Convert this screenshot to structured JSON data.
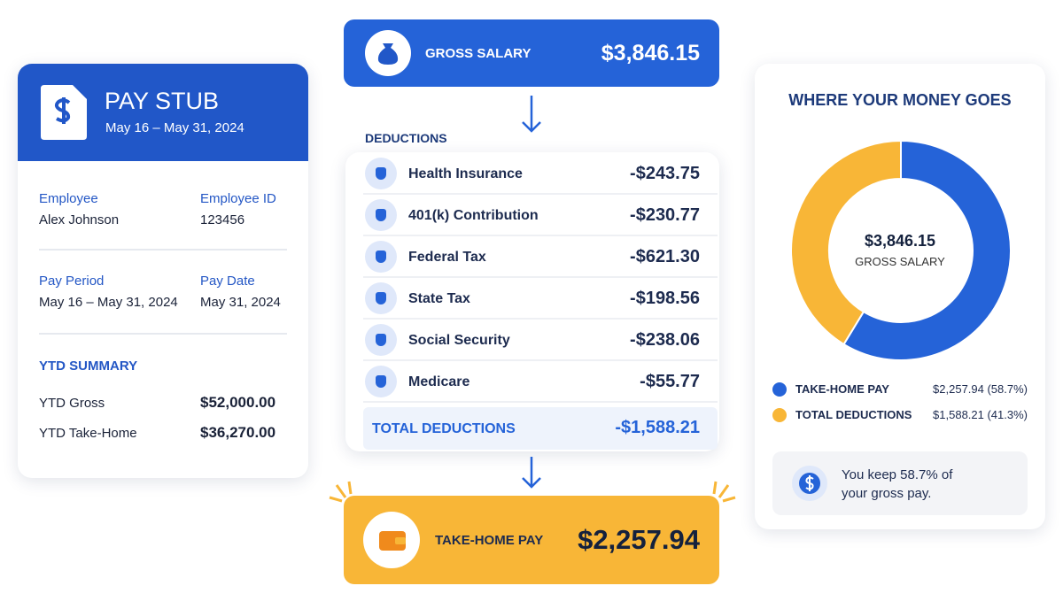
{
  "pay_stub": {
    "title": "PAY STUB",
    "period": "May 16 – May 31, 2024",
    "fields": [
      {
        "label": "Employee",
        "value": "Alex Johnson"
      },
      {
        "label": "Employee ID",
        "value": "123456"
      },
      {
        "label": "Pay Period",
        "value": "May 16 – May 31, 2024"
      },
      {
        "label": "Pay Date",
        "value": "May 31, 2024"
      }
    ],
    "ytd": {
      "title": "YTD SUMMARY",
      "rows": [
        {
          "label": "YTD Gross",
          "value": "$52,000.00"
        },
        {
          "label": "YTD Take-Home",
          "value": "$36,270.00"
        }
      ]
    }
  },
  "gross": {
    "label": "GROSS SALARY",
    "value": "$3,846.15"
  },
  "deductions": {
    "title": "DEDUCTIONS",
    "items": [
      {
        "label": "Health Insurance",
        "value": "-$243.75"
      },
      {
        "label": "401(k) Contribution",
        "value": "-$230.77"
      },
      {
        "label": "Federal Tax",
        "value": "-$621.30"
      },
      {
        "label": "State Tax",
        "value": "-$198.56"
      },
      {
        "label": "Social Security",
        "value": "-$238.06"
      },
      {
        "label": "Medicare",
        "value": "-$55.77"
      }
    ],
    "total": {
      "label": "TOTAL DEDUCTIONS",
      "value": "-$1,588.21"
    }
  },
  "take_home": {
    "label": "TAKE-HOME PAY",
    "value": "$2,257.94"
  },
  "breakdown": {
    "title": "WHERE YOUR MONEY GOES",
    "center_value": "$3,846.15",
    "center_label": "GROSS SALARY",
    "slices": [
      {
        "name": "TAKE-HOME PAY",
        "label": "$2,257.94 (58.7%)",
        "percent": 58.7,
        "color": "#2563d8"
      },
      {
        "name": "TOTAL DEDUCTIONS",
        "label": "$1,588.21 (41.3%)",
        "percent": 41.3,
        "color": "#f8b637"
      }
    ],
    "note": "You keep 58.7% of your gross pay."
  }
}
